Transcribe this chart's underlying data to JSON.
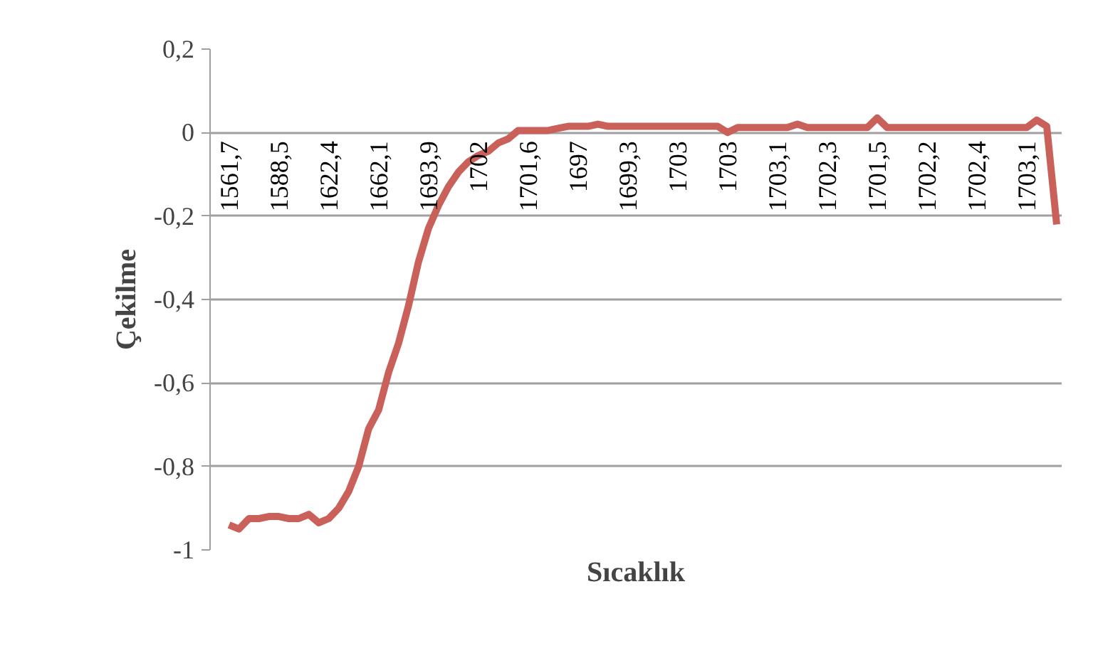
{
  "chart_data": {
    "type": "line",
    "xlabel": "Sıcaklık",
    "ylabel": "Çekilme",
    "categories": [
      "1561,7",
      null,
      null,
      null,
      null,
      "1588,5",
      null,
      null,
      null,
      null,
      "1622,4",
      null,
      null,
      null,
      null,
      "1662,1",
      null,
      null,
      null,
      null,
      "1693,9",
      null,
      null,
      null,
      null,
      "1702",
      null,
      null,
      null,
      null,
      "1701,6",
      null,
      null,
      null,
      null,
      "1697",
      null,
      null,
      null,
      null,
      "1699,3",
      null,
      null,
      null,
      null,
      "1703",
      null,
      null,
      null,
      null,
      "1703",
      null,
      null,
      null,
      null,
      "1703,1",
      null,
      null,
      null,
      null,
      "1702,3",
      null,
      null,
      null,
      null,
      "1701,5",
      null,
      null,
      null,
      null,
      "1702,2",
      null,
      null,
      null,
      null,
      "1702,4",
      null,
      null,
      null,
      null,
      "1703,1",
      null,
      null,
      null
    ],
    "series": [
      {
        "color": "#c9605a",
        "values": [
          -0.94,
          -0.95,
          -0.925,
          -0.925,
          -0.92,
          -0.92,
          -0.925,
          -0.925,
          -0.915,
          -0.935,
          -0.925,
          -0.9,
          -0.86,
          -0.8,
          -0.71,
          -0.665,
          -0.575,
          -0.505,
          -0.415,
          -0.31,
          -0.23,
          -0.175,
          -0.13,
          -0.095,
          -0.07,
          -0.055,
          -0.045,
          -0.025,
          -0.015,
          0.005,
          0.005,
          0.005,
          0.005,
          0.01,
          0.015,
          0.015,
          0.015,
          0.02,
          0.015,
          0.015,
          0.015,
          0.015,
          0.015,
          0.015,
          0.015,
          0.015,
          0.015,
          0.015,
          0.015,
          0.015,
          0.0,
          0.012,
          0.012,
          0.012,
          0.012,
          0.012,
          0.012,
          0.02,
          0.012,
          0.012,
          0.012,
          0.012,
          0.012,
          0.012,
          0.012,
          0.035,
          0.012,
          0.012,
          0.012,
          0.012,
          0.012,
          0.012,
          0.012,
          0.012,
          0.012,
          0.012,
          0.012,
          0.012,
          0.012,
          0.012,
          0.012,
          0.03,
          0.015,
          -0.22
        ]
      }
    ],
    "ylim": [
      -1,
      0.2
    ],
    "yticks": [
      {
        "value": -1,
        "label": "-1"
      },
      {
        "value": -0.8,
        "label": "-0,8"
      },
      {
        "value": -0.6,
        "label": "-0,6"
      },
      {
        "value": -0.4,
        "label": "-0,4"
      },
      {
        "value": -0.2,
        "label": "-0,2"
      },
      {
        "value": 0,
        "label": "0"
      },
      {
        "value": 0.2,
        "label": "0,2"
      }
    ],
    "grid": "y",
    "marker": "none",
    "line_style": "solid"
  }
}
